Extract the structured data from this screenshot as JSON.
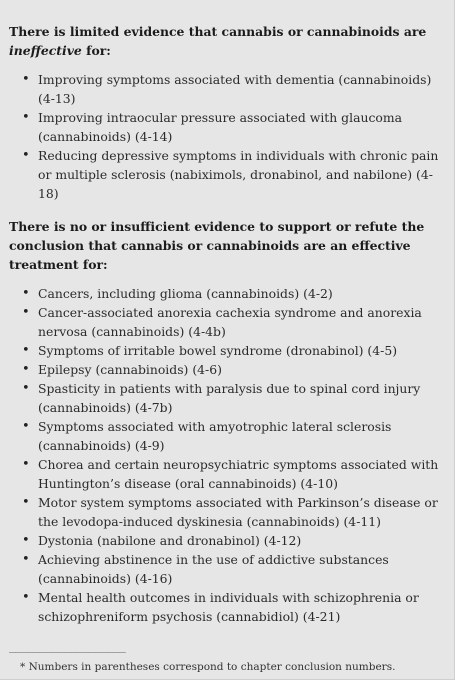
{
  "section1": {
    "heading_pre": "There is limited evidence that cannabis or cannabinoids are ",
    "heading_em": "ineffective",
    "heading_post": " for:",
    "items": [
      "Improving symptoms associated with dementia (cannabinoids) (4-13)",
      "Improving intraocular pressure associated with glaucoma (cannabinoids) (4-14)",
      "Reducing depressive symptoms in individuals with chronic pain or multiple sclerosis (nabiximols, dronabinol, and nabilone) (4-18)"
    ]
  },
  "section2": {
    "heading": "There is no or insufficient evidence to support or refute the conclusion that cannabis or cannabinoids are an effective treatment for:",
    "items": [
      "Cancers, including glioma (cannabinoids) (4-2)",
      "Cancer-associated anorexia cachexia syndrome and anorexia nervosa (cannabinoids) (4-4b)",
      "Symptoms of irritable bowel syndrome (dronabinol) (4-5)",
      "Epilepsy (cannabinoids) (4-6)",
      "Spasticity in patients with paralysis due to spinal cord injury (cannabinoids) (4-7b)",
      "Symptoms associated with amyotrophic lateral sclerosis (cannabinoids) (4-9)",
      "Chorea and certain neuropsychiatric symptoms associated with Huntington’s disease (oral cannabinoids) (4-10)",
      "Motor system symptoms associated with Parkinson’s disease or the levodopa-induced dyskinesia (cannabinoids) (4-11)",
      "Dystonia (nabilone and dronabinol) (4-12)",
      "Achieving abstinence in the use of addictive substances (cannabinoids) (4-16)",
      "Mental health outcomes in individuals with schizophrenia or schizophreniform psychosis (cannabidiol) (4-21)"
    ]
  },
  "footer": {
    "rule": "___________________",
    "note": "* Numbers in parentheses correspond to chapter conclusion numbers."
  }
}
